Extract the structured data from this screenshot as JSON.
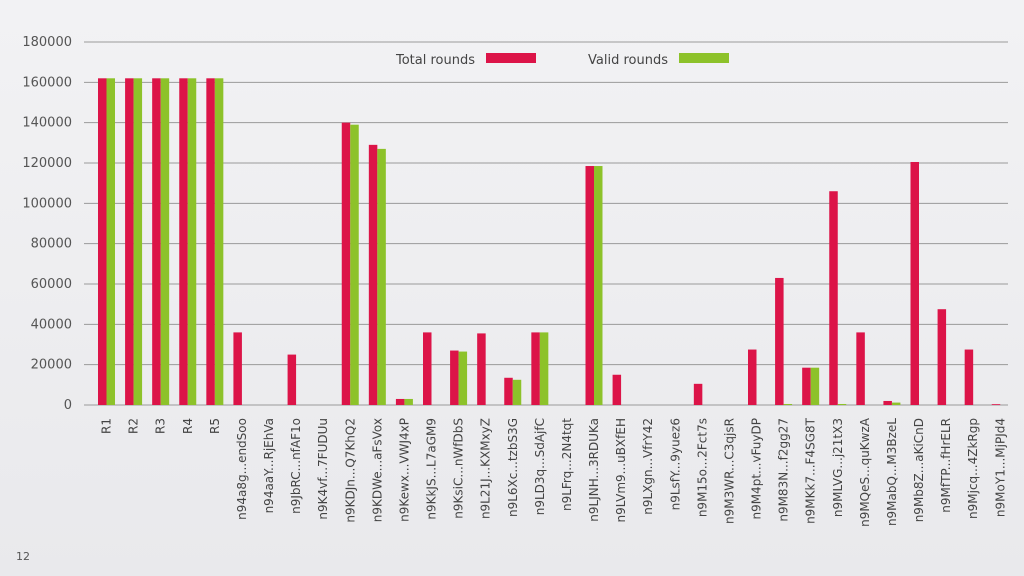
{
  "page_number": "12",
  "chart_data": {
    "type": "bar",
    "categories": [
      "R1",
      "R2",
      "R3",
      "R4",
      "R5",
      "n94a8g...endSoo",
      "n94aaY...RjEhVa",
      "n9JbRC...nfAF1o",
      "n9K4vf...7FUDUu",
      "n9KDJn...Q7KhQ2",
      "n9KDWe...aFsVox",
      "n9Kewx...VWJ4xP",
      "n9KkJS...L7aGM9",
      "n9KsiC...nWfDbS",
      "n9L21J...KXMxyZ",
      "n9L6Xc...tzbS3G",
      "n9LD3q...SdAjfC",
      "n9LFrq...2N4tqt",
      "n9LJNH...3RDUKa",
      "n9LVm9...uBXfEH",
      "n9LXgn...VfrY42",
      "n9LsfY...9yuez6",
      "n9M15o...2Fct7s",
      "n9M3WR...C3qjsR",
      "n9M4pt...vFuyDP",
      "n9M83N...f2gg27",
      "n9MKk7...F4SG8T",
      "n9MLVG...j21tX3",
      "n9MQeS...quKwzA",
      "n9MabQ...M3BzeL",
      "n9Mb8Z...aKiCnD",
      "n9MfTP...fHrELR",
      "n9Mjcq...4ZkRgp",
      "n9MoY1...MjPJd4"
    ],
    "series": [
      {
        "name": "Total rounds",
        "color": "#dc1448",
        "values": [
          162000,
          162000,
          162000,
          162000,
          162000,
          36000,
          0,
          25000,
          0,
          140000,
          129000,
          3000,
          36000,
          27000,
          35500,
          13500,
          36000,
          0,
          118500,
          15000,
          0,
          0,
          10500,
          0,
          27500,
          63000,
          18500,
          106000,
          36000,
          2000,
          120500,
          47500,
          27500,
          400
        ]
      },
      {
        "name": "Valid rounds",
        "color": "#8dc22a",
        "values": [
          162000,
          162000,
          162000,
          162000,
          162000,
          0,
          0,
          0,
          0,
          139000,
          127000,
          3000,
          0,
          26500,
          0,
          12500,
          36000,
          0,
          118500,
          0,
          0,
          0,
          0,
          0,
          0,
          500,
          18500,
          500,
          0,
          1200,
          0,
          0,
          0,
          0
        ]
      }
    ],
    "y_ticks": [
      "0",
      "20000",
      "40000",
      "60000",
      "80000",
      "100000",
      "120000",
      "140000",
      "160000",
      "180000"
    ],
    "ylim": [
      0,
      180000
    ],
    "grid": true,
    "legend": "top-center"
  }
}
